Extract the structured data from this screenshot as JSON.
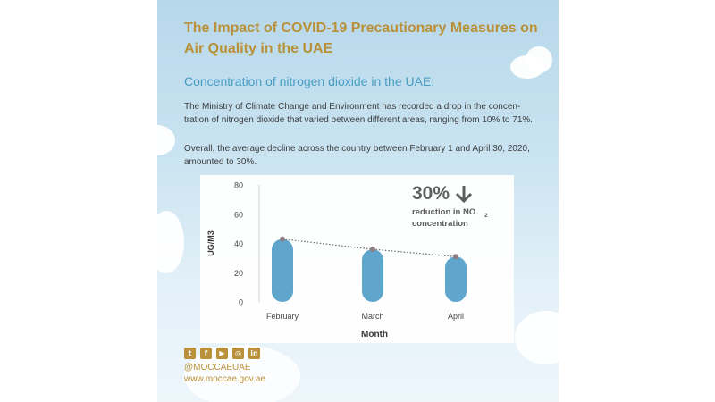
{
  "title_line1": "The Impact of COVID-19 Precautionary Measures on",
  "title_line2": "Air Quality in the UAE",
  "subtitle": "Concentration of nitrogen dioxide in the UAE:",
  "paragraph1": "The Ministry of Climate Change and Environment has recorded a drop in the concen- tration of nitrogen dioxide that varied between different areas, ranging from 10% to 71%.",
  "paragraph2": "Overall, the average decline across the country between February 1 and April 30, 2020, amounted to 30%.",
  "callout": {
    "value": "30%",
    "arrow_icon": "arrow-down-icon",
    "line1_text": "reduction in NO",
    "line1_subscript": "2",
    "line2": "concentration"
  },
  "chart_data": {
    "type": "bar",
    "categories": [
      "February",
      "March",
      "April"
    ],
    "values": [
      43,
      36,
      31
    ],
    "trend_line": {
      "style": "dotted",
      "values": [
        43,
        36,
        31
      ]
    },
    "xlabel": "Month",
    "ylabel": "UG/M3",
    "ylim": [
      0,
      80
    ],
    "yticks": [
      "0",
      "20",
      "40",
      "60",
      "80"
    ],
    "grid": false,
    "bar_color": "#5ba3cb",
    "marker_color": "#8c7b80"
  },
  "social": {
    "icons": [
      "twitter-icon",
      "facebook-icon",
      "youtube-icon",
      "instagram-icon",
      "linkedin-icon"
    ],
    "handle": "@MOCCAEUAE",
    "website": "www.moccae.gov.ae"
  },
  "colors": {
    "gold": "#b8913a",
    "accent_blue": "#4a9cc4"
  }
}
